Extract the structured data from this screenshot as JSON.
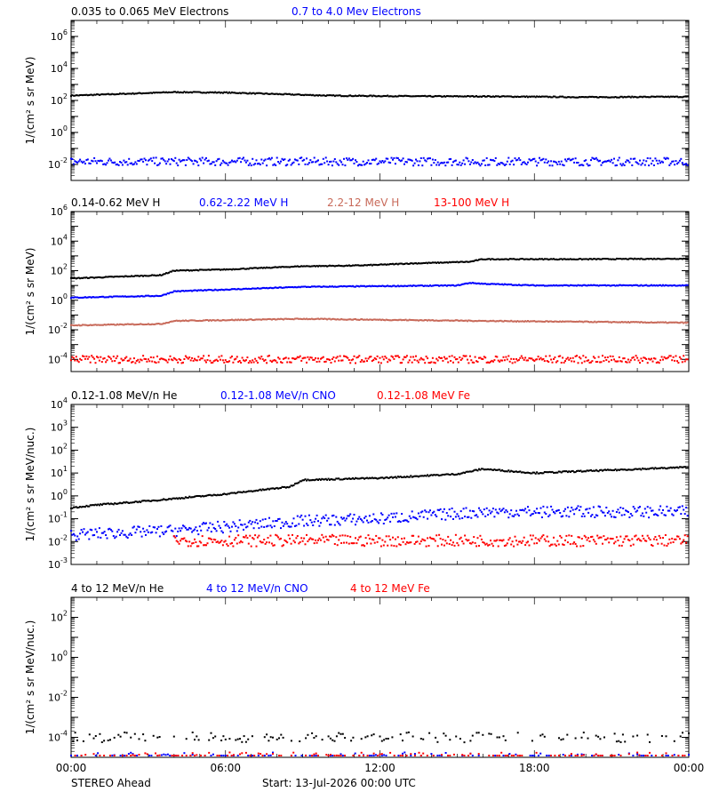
{
  "page": {
    "footer_left": "STEREO Ahead",
    "footer_center": "Start: 13-Jul-2026 00:00 UTC"
  },
  "colors": {
    "black": "#000000",
    "blue": "#0000ff",
    "salmon": "#c86a5a",
    "red": "#ff0000"
  },
  "chart_data": [
    {
      "type": "scatter",
      "ylabel": "1/(cm² s sr MeV)",
      "y_scale": "log",
      "ylim": [
        0.001,
        10000000
      ],
      "yticks": [
        [
          "10",
          "-2",
          0.01
        ],
        [
          "10",
          "0",
          1
        ],
        [
          "10",
          "2",
          100
        ],
        [
          "10",
          "4",
          10000
        ],
        [
          "10",
          "6",
          1000000
        ]
      ],
      "x_hours": [
        0,
        24
      ],
      "legend": [
        {
          "label": "0.035 to 0.065 MeV Electrons",
          "color": "#000000"
        },
        {
          "label": "0.7 to 4.0 Mev Electrons",
          "color": "#0000ff"
        }
      ],
      "series": [
        {
          "name": "0.035 to 0.065 MeV Electrons",
          "color": "#000000",
          "knots_hours": [
            0,
            4,
            6,
            8,
            10,
            14,
            16,
            18,
            20,
            24
          ],
          "knots_values": [
            200,
            330,
            310,
            250,
            200,
            180,
            180,
            170,
            160,
            170
          ]
        },
        {
          "name": "0.7 to 4.0 Mev Electrons",
          "color": "#0000ff",
          "knots_hours": [
            0,
            24
          ],
          "knots_values": [
            0.015,
            0.015
          ]
        }
      ]
    },
    {
      "type": "scatter",
      "ylabel": "1/(cm² s sr MeV)",
      "y_scale": "log",
      "ylim": [
        1.5e-05,
        1000000
      ],
      "yticks": [
        [
          "10",
          "-4",
          0.0001
        ],
        [
          "10",
          "-2",
          0.01
        ],
        [
          "10",
          "0",
          1
        ],
        [
          "10",
          "2",
          100
        ],
        [
          "10",
          "4",
          10000
        ],
        [
          "10",
          "6",
          1000000
        ]
      ],
      "x_hours": [
        0,
        24
      ],
      "legend": [
        {
          "label": "0.14-0.62 MeV H",
          "color": "#000000"
        },
        {
          "label": "0.62-2.22 MeV H",
          "color": "#0000ff"
        },
        {
          "label": "2.2-12 MeV H",
          "color": "#c86a5a"
        },
        {
          "label": "13-100 MeV H",
          "color": "#ff0000"
        }
      ],
      "series": [
        {
          "name": "0.14-0.62 MeV H",
          "color": "#000000",
          "knots_hours": [
            0,
            3.5,
            4,
            6,
            9,
            11,
            12,
            13,
            15.5,
            16,
            20,
            24
          ],
          "knots_values": [
            30,
            50,
            100,
            120,
            200,
            220,
            250,
            300,
            400,
            600,
            600,
            650
          ]
        },
        {
          "name": "0.62-2.22 MeV H",
          "color": "#0000ff",
          "knots_hours": [
            0,
            3.5,
            4,
            9,
            15,
            15.5,
            16,
            18,
            24
          ],
          "knots_values": [
            1.5,
            2,
            4,
            8,
            10,
            15,
            13,
            10,
            10
          ]
        },
        {
          "name": "2.2-12 MeV H",
          "color": "#c86a5a",
          "knots_hours": [
            0,
            3.5,
            4,
            9,
            11,
            16,
            24
          ],
          "knots_values": [
            0.02,
            0.025,
            0.04,
            0.055,
            0.05,
            0.04,
            0.03
          ]
        },
        {
          "name": "13-100 MeV H",
          "color": "#ff0000",
          "knots_hours": [
            0,
            24
          ],
          "knots_values": [
            0.0001,
            0.0001
          ]
        }
      ]
    },
    {
      "type": "scatter",
      "ylabel": "1/(cm² s sr MeV/nuc.)",
      "y_scale": "log",
      "ylim": [
        0.001,
        10000
      ],
      "yticks": [
        [
          "10",
          "-3",
          0.001
        ],
        [
          "10",
          "-2",
          0.01
        ],
        [
          "10",
          "-1",
          0.1
        ],
        [
          "10",
          "0",
          1
        ],
        [
          "10",
          "1",
          10
        ],
        [
          "10",
          "2",
          100
        ],
        [
          "10",
          "3",
          1000
        ],
        [
          "10",
          "4",
          10000
        ]
      ],
      "x_hours": [
        0,
        24
      ],
      "legend": [
        {
          "label": "0.12-1.08 MeV/n He",
          "color": "#000000"
        },
        {
          "label": "0.12-1.08 MeV/n CNO",
          "color": "#0000ff"
        },
        {
          "label": "0.12-1.08 MeV Fe",
          "color": "#ff0000"
        }
      ],
      "series": [
        {
          "name": "0.12-1.08 MeV/n He",
          "color": "#000000",
          "knots_hours": [
            0,
            1,
            3,
            6,
            8.5,
            9,
            12,
            15,
            16,
            18,
            24
          ],
          "knots_values": [
            0.3,
            0.4,
            0.6,
            1.2,
            2.5,
            5,
            6,
            9,
            15,
            10,
            18
          ]
        },
        {
          "name": "0.12-1.08 MeV/n CNO",
          "color": "#0000ff",
          "knots_hours": [
            0,
            4,
            9,
            12,
            16,
            24
          ],
          "knots_values": [
            0.02,
            0.03,
            0.08,
            0.1,
            0.2,
            0.2
          ]
        },
        {
          "name": "0.12-1.08 MeV Fe",
          "color": "#ff0000",
          "knots_hours": [
            4,
            24
          ],
          "knots_values": [
            0.011,
            0.011
          ]
        }
      ]
    },
    {
      "type": "scatter",
      "ylabel": "1/(cm² s sr MeV/nuc.)",
      "y_scale": "log",
      "ylim": [
        1e-05,
        1000
      ],
      "yticks": [
        [
          "10",
          "-4",
          0.0001
        ],
        [
          "10",
          "-2",
          0.01
        ],
        [
          "10",
          "0",
          1
        ],
        [
          "10",
          "2",
          100
        ]
      ],
      "x_hours": [
        0,
        24
      ],
      "xticks": [
        "00:00",
        "06:00",
        "12:00",
        "18:00",
        "00:00"
      ],
      "legend": [
        {
          "label": "4 to 12 MeV/n He",
          "color": "#000000"
        },
        {
          "label": "4 to 12 MeV/n CNO",
          "color": "#0000ff"
        },
        {
          "label": "4 to 12 MeV Fe",
          "color": "#ff0000"
        }
      ],
      "series": [
        {
          "name": "4 to 12 MeV/n He",
          "color": "#000000",
          "knots_hours": [
            0,
            24
          ],
          "knots_values": [
            0.0001,
            0.0001
          ]
        },
        {
          "name": "4 to 12 MeV/n CNO",
          "color": "#0000ff",
          "knots_hours": [
            0,
            24
          ],
          "knots_values": [
            1e-05,
            1e-05
          ]
        },
        {
          "name": "4 to 12 MeV Fe",
          "color": "#ff0000",
          "knots_hours": [
            0,
            24
          ],
          "knots_values": [
            1e-05,
            1e-05
          ]
        }
      ]
    }
  ]
}
